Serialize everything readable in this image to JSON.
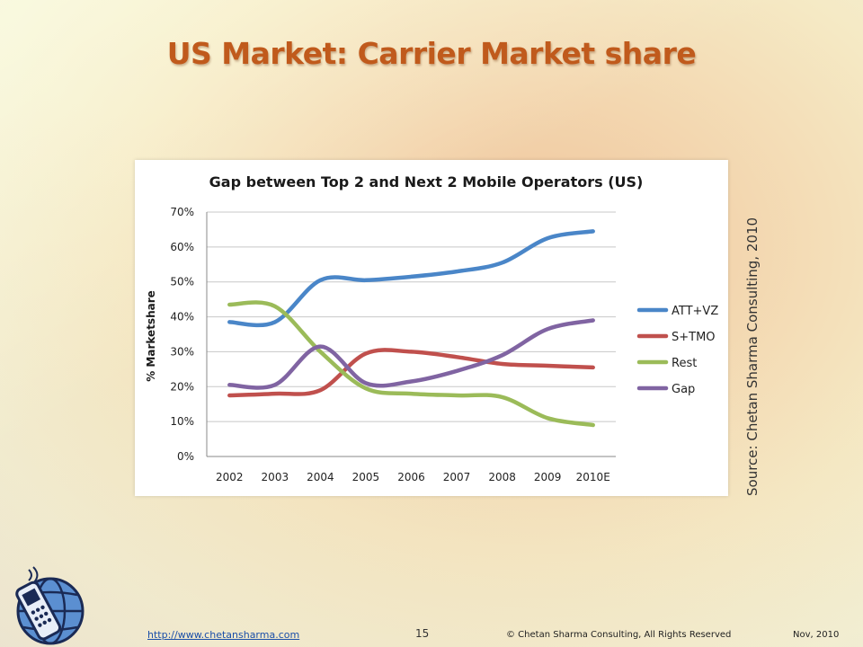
{
  "slide": {
    "title": "US Market: Carrier Market share",
    "source": "Source: Chetan Sharma Consulting, 2010"
  },
  "footer": {
    "link": "http://www.chetansharma.com",
    "page": "15",
    "copyright": "© Chetan Sharma Consulting, All Rights Reserved",
    "date": "Nov, 2010"
  },
  "chart_data": {
    "type": "line",
    "title": "Gap between Top 2 and Next 2 Mobile Operators (US)",
    "xlabel": "",
    "ylabel": "% Marketshare",
    "categories": [
      "2002",
      "2003",
      "2004",
      "2005",
      "2006",
      "2007",
      "2008",
      "2009",
      "2010E"
    ],
    "yticks": [
      "0%",
      "10%",
      "20%",
      "30%",
      "40%",
      "50%",
      "60%",
      "70%"
    ],
    "ylim": [
      0,
      70
    ],
    "grid": true,
    "legend_position": "right",
    "series": [
      {
        "name": "ATT+VZ",
        "color": "#4a86c8",
        "values": [
          38.5,
          38.5,
          50.5,
          50.5,
          51.5,
          53,
          55.5,
          62.5,
          64.5
        ]
      },
      {
        "name": "S+TMO",
        "color": "#c0504d",
        "values": [
          17.5,
          18,
          19,
          29.5,
          30,
          28.5,
          26.5,
          26,
          25.5
        ]
      },
      {
        "name": "Rest",
        "color": "#9bbb59",
        "values": [
          43.5,
          43,
          30,
          19.5,
          18,
          17.5,
          17,
          11,
          9
        ]
      },
      {
        "name": "Gap",
        "color": "#8064a2",
        "values": [
          20.5,
          20.5,
          31.5,
          21,
          21.5,
          24.5,
          29,
          36.5,
          39
        ]
      }
    ]
  }
}
